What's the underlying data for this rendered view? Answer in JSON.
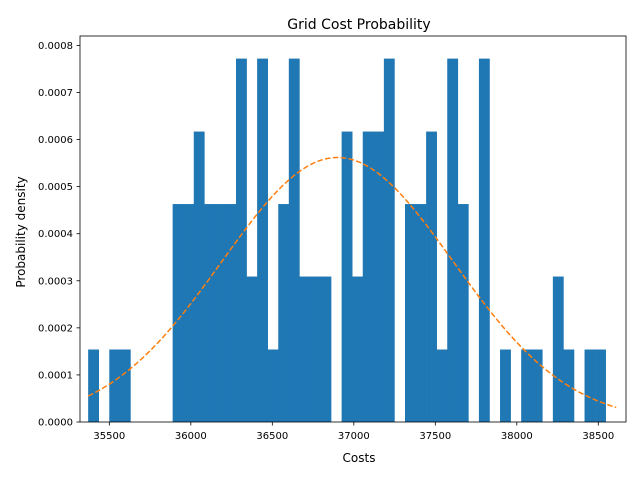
{
  "chart_data": {
    "type": "bar",
    "title": "Grid Cost Probability",
    "xlabel": "Costs",
    "ylabel": "Probability density",
    "xlim": [
      35320,
      38670
    ],
    "ylim": [
      0,
      0.00082
    ],
    "xticks": [
      35500,
      36000,
      36500,
      37000,
      37500,
      38000,
      38500
    ],
    "yticks": [
      0.0,
      0.0001,
      0.0002,
      0.0003,
      0.0004,
      0.0005,
      0.0006,
      0.0007,
      0.0008
    ],
    "ytick_labels": [
      "0.0000",
      "0.0001",
      "0.0002",
      "0.0003",
      "0.0004",
      "0.0005",
      "0.0006",
      "0.0007",
      "0.0008"
    ],
    "grid": false,
    "bar_color": "#1f77b4",
    "curve_color": "#ff7f0e",
    "histogram": {
      "bin_start": 35370,
      "bin_width": 64.8,
      "values": [
        0.000154,
        0,
        0.000154,
        0.000154,
        0,
        0,
        0,
        0,
        0.000463,
        0.000463,
        0.000617,
        0.000463,
        0.000463,
        0.000463,
        0.000772,
        0.000309,
        0.000772,
        0.000154,
        0.000463,
        0.000772,
        0.000309,
        0.000309,
        0.000309,
        0,
        0.000617,
        0.000309,
        0.000617,
        0.000617,
        0.000772,
        0,
        0.000463,
        0.000463,
        0.000617,
        0.000154,
        0.000772,
        0.000463,
        0,
        0.000772,
        0,
        0.000154,
        0,
        0.000154,
        0.000154,
        0,
        0.000309,
        0.000154,
        0,
        0.000154,
        0.000154
      ]
    },
    "normal_curve": {
      "mean": 36900,
      "std": 710,
      "x_range": [
        35370,
        38610
      ],
      "style": "dashed"
    }
  }
}
